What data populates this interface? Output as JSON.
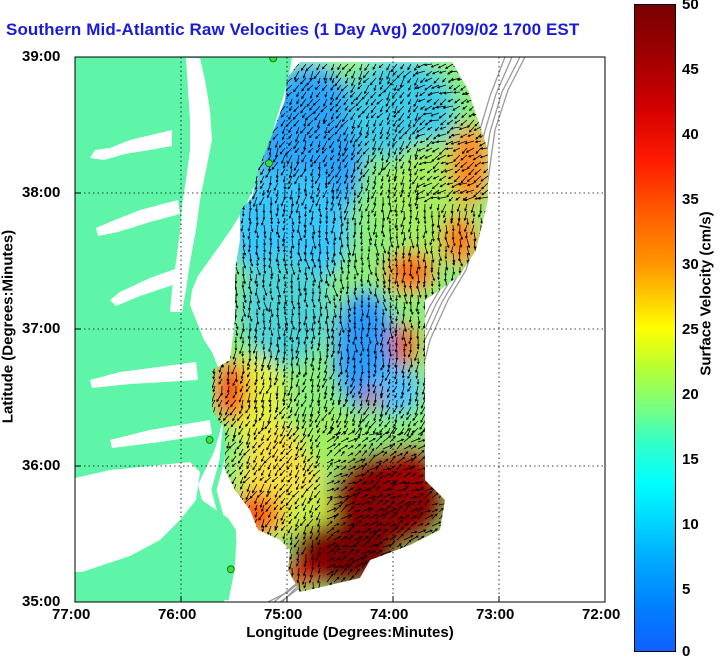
{
  "title": "Southern Mid-Atlantic Raw Velocities (1 Day Avg) 2007/09/02 1700 EST",
  "xlabel": "Longitude (Degrees:Minutes)",
  "ylabel": "Latitude (Degrees:Minutes)",
  "colorbar": {
    "label": "Surface Velocity (cm/s)",
    "range": [
      0,
      50
    ],
    "ticks": [
      "50",
      "45",
      "40",
      "35",
      "30",
      "25",
      "20",
      "15",
      "10",
      "5",
      "0"
    ]
  },
  "x_ticks": [
    "77:00",
    "76:00",
    "75:00",
    "74:00",
    "73:00",
    "72:00"
  ],
  "y_ticks": [
    "39:00",
    "38:00",
    "37:00",
    "36:00",
    "35:00"
  ],
  "extent": {
    "lon": [
      -77,
      -72
    ],
    "lat": [
      35,
      39
    ]
  },
  "colors": {
    "land": "#5ef5a8",
    "title": "#1a1adc",
    "vectors": "#000000",
    "stations": "#3cdc3c"
  },
  "stations": [
    {
      "lon": -75.13,
      "lat": 38.99
    },
    {
      "lon": -75.17,
      "lat": 38.22
    },
    {
      "lon": -75.73,
      "lat": 36.19
    },
    {
      "lon": -75.53,
      "lat": 35.24
    }
  ],
  "features": [
    "land",
    "bathymetry-contours",
    "velocity-field",
    "velocity-vectors",
    "stations"
  ]
}
